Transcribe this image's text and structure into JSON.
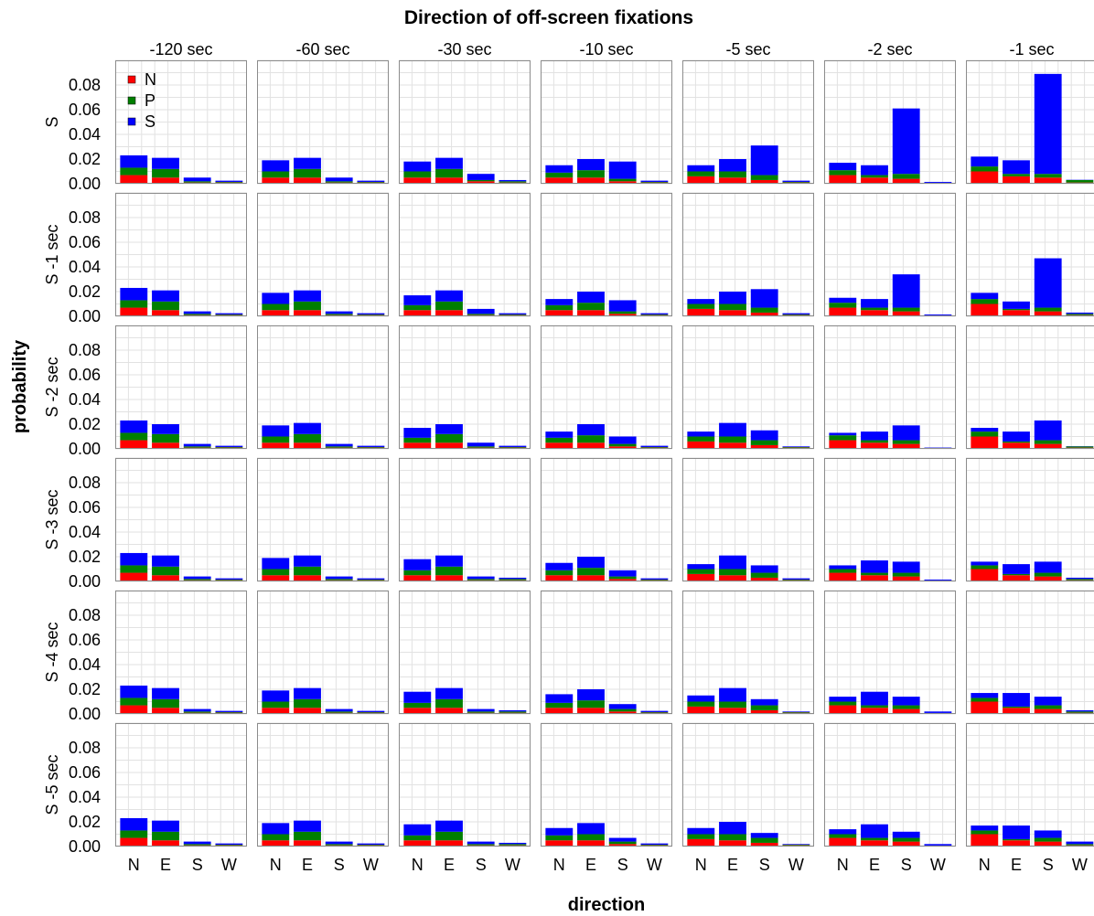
{
  "chart_data": {
    "type": "bar",
    "stacked": true,
    "title": "Direction of off-screen fixations",
    "xlabel": "direction",
    "ylabel": "probability",
    "ylim": [
      0,
      0.1
    ],
    "yticks": [
      0.0,
      0.02,
      0.04,
      0.06,
      0.08
    ],
    "ytick_labels": [
      "0.00",
      "0.02",
      "0.04",
      "0.06",
      "0.08"
    ],
    "grid": true,
    "legend": {
      "placement": "top-left",
      "panel": "first"
    },
    "categories": [
      "N",
      "E",
      "S",
      "W"
    ],
    "column_facets": [
      "-120 sec",
      "-60 sec",
      "-30 sec",
      "-10 sec",
      "-5 sec",
      "-2 sec",
      "-1 sec"
    ],
    "row_facets": [
      "S",
      "S -1 sec",
      "S -2 sec",
      "S -3 sec",
      "S -4 sec",
      "S -5 sec"
    ],
    "series_names": [
      "N",
      "P",
      "S"
    ],
    "series_colors": [
      "#ff0000",
      "#007f00",
      "#0000ff"
    ],
    "panels": [
      [
        {
          "N": [
            0.007,
            0.005,
            0.001,
            0.001
          ],
          "P": [
            0.006,
            0.007,
            0.001,
            0.0005
          ],
          "S": [
            0.01,
            0.009,
            0.003,
            0.001
          ]
        },
        {
          "N": [
            0.005,
            0.005,
            0.001,
            0.001
          ],
          "P": [
            0.005,
            0.007,
            0.001,
            0.0005
          ],
          "S": [
            0.009,
            0.009,
            0.003,
            0.001
          ]
        },
        {
          "N": [
            0.005,
            0.005,
            0.002,
            0.001
          ],
          "P": [
            0.005,
            0.007,
            0.001,
            0.001
          ],
          "S": [
            0.008,
            0.009,
            0.005,
            0.001
          ]
        },
        {
          "N": [
            0.005,
            0.005,
            0.002,
            0.001
          ],
          "P": [
            0.004,
            0.006,
            0.002,
            0.0005
          ],
          "S": [
            0.006,
            0.009,
            0.014,
            0.001
          ]
        },
        {
          "N": [
            0.006,
            0.005,
            0.003,
            0.001
          ],
          "P": [
            0.004,
            0.005,
            0.004,
            0.0005
          ],
          "S": [
            0.005,
            0.01,
            0.024,
            0.001
          ]
        },
        {
          "N": [
            0.007,
            0.005,
            0.004,
            0.0005
          ],
          "P": [
            0.004,
            0.002,
            0.004,
            0.0003
          ],
          "S": [
            0.006,
            0.008,
            0.053,
            0.0007
          ]
        },
        {
          "N": [
            0.01,
            0.006,
            0.005,
            0.001
          ],
          "P": [
            0.004,
            0.002,
            0.003,
            0.002
          ],
          "S": [
            0.008,
            0.011,
            0.081,
            0.0002
          ]
        }
      ],
      [
        {
          "N": [
            0.007,
            0.005,
            0.001,
            0.001
          ],
          "P": [
            0.006,
            0.007,
            0.001,
            0.0005
          ],
          "S": [
            0.01,
            0.009,
            0.002,
            0.001
          ]
        },
        {
          "N": [
            0.005,
            0.005,
            0.001,
            0.001
          ],
          "P": [
            0.005,
            0.007,
            0.001,
            0.0005
          ],
          "S": [
            0.009,
            0.009,
            0.002,
            0.001
          ]
        },
        {
          "N": [
            0.005,
            0.005,
            0.001,
            0.001
          ],
          "P": [
            0.004,
            0.007,
            0.001,
            0.0005
          ],
          "S": [
            0.008,
            0.009,
            0.004,
            0.001
          ]
        },
        {
          "N": [
            0.005,
            0.005,
            0.002,
            0.001
          ],
          "P": [
            0.004,
            0.006,
            0.002,
            0.0005
          ],
          "S": [
            0.005,
            0.009,
            0.009,
            0.001
          ]
        },
        {
          "N": [
            0.006,
            0.005,
            0.003,
            0.001
          ],
          "P": [
            0.004,
            0.005,
            0.004,
            0.0005
          ],
          "S": [
            0.004,
            0.01,
            0.015,
            0.001
          ]
        },
        {
          "N": [
            0.007,
            0.005,
            0.004,
            0.0005
          ],
          "P": [
            0.004,
            0.002,
            0.003,
            0.0003
          ],
          "S": [
            0.004,
            0.007,
            0.027,
            0.0007
          ]
        },
        {
          "N": [
            0.01,
            0.005,
            0.004,
            0.001
          ],
          "P": [
            0.004,
            0.001,
            0.003,
            0.001
          ],
          "S": [
            0.005,
            0.006,
            0.04,
            0.001
          ]
        }
      ],
      [
        {
          "N": [
            0.007,
            0.005,
            0.001,
            0.001
          ],
          "P": [
            0.006,
            0.007,
            0.001,
            0.0005
          ],
          "S": [
            0.01,
            0.008,
            0.002,
            0.001
          ]
        },
        {
          "N": [
            0.005,
            0.005,
            0.001,
            0.001
          ],
          "P": [
            0.005,
            0.007,
            0.001,
            0.0005
          ],
          "S": [
            0.009,
            0.009,
            0.002,
            0.001
          ]
        },
        {
          "N": [
            0.005,
            0.005,
            0.001,
            0.001
          ],
          "P": [
            0.004,
            0.007,
            0.001,
            0.0005
          ],
          "S": [
            0.008,
            0.008,
            0.003,
            0.001
          ]
        },
        {
          "N": [
            0.005,
            0.005,
            0.002,
            0.001
          ],
          "P": [
            0.004,
            0.006,
            0.002,
            0.0005
          ],
          "S": [
            0.005,
            0.009,
            0.006,
            0.001
          ]
        },
        {
          "N": [
            0.006,
            0.005,
            0.003,
            0.001
          ],
          "P": [
            0.004,
            0.005,
            0.004,
            0.0005
          ],
          "S": [
            0.004,
            0.011,
            0.008,
            0.0005
          ]
        },
        {
          "N": [
            0.007,
            0.005,
            0.004,
            0.0005
          ],
          "P": [
            0.004,
            0.002,
            0.003,
            0.0003
          ],
          "S": [
            0.002,
            0.007,
            0.012,
            0.0003
          ]
        },
        {
          "N": [
            0.01,
            0.005,
            0.004,
            0.001
          ],
          "P": [
            0.004,
            0.001,
            0.003,
            0.001
          ],
          "S": [
            0.003,
            0.008,
            0.016,
            0.0002
          ]
        }
      ],
      [
        {
          "N": [
            0.007,
            0.005,
            0.001,
            0.001
          ],
          "P": [
            0.006,
            0.007,
            0.001,
            0.0005
          ],
          "S": [
            0.01,
            0.009,
            0.002,
            0.001
          ]
        },
        {
          "N": [
            0.005,
            0.005,
            0.001,
            0.001
          ],
          "P": [
            0.005,
            0.007,
            0.001,
            0.0005
          ],
          "S": [
            0.009,
            0.009,
            0.002,
            0.001
          ]
        },
        {
          "N": [
            0.005,
            0.005,
            0.001,
            0.001
          ],
          "P": [
            0.004,
            0.007,
            0.001,
            0.001
          ],
          "S": [
            0.009,
            0.009,
            0.002,
            0.001
          ]
        },
        {
          "N": [
            0.005,
            0.005,
            0.002,
            0.001
          ],
          "P": [
            0.004,
            0.006,
            0.002,
            0.0005
          ],
          "S": [
            0.006,
            0.009,
            0.005,
            0.001
          ]
        },
        {
          "N": [
            0.006,
            0.005,
            0.003,
            0.001
          ],
          "P": [
            0.004,
            0.005,
            0.004,
            0.0005
          ],
          "S": [
            0.004,
            0.011,
            0.006,
            0.001
          ]
        },
        {
          "N": [
            0.007,
            0.005,
            0.004,
            0.0005
          ],
          "P": [
            0.003,
            0.002,
            0.003,
            0.0003
          ],
          "S": [
            0.003,
            0.01,
            0.009,
            0.0007
          ]
        },
        {
          "N": [
            0.01,
            0.005,
            0.004,
            0.001
          ],
          "P": [
            0.003,
            0.001,
            0.003,
            0.001
          ],
          "S": [
            0.003,
            0.008,
            0.009,
            0.001
          ]
        }
      ],
      [
        {
          "N": [
            0.007,
            0.005,
            0.001,
            0.001
          ],
          "P": [
            0.006,
            0.007,
            0.001,
            0.0005
          ],
          "S": [
            0.01,
            0.009,
            0.002,
            0.001
          ]
        },
        {
          "N": [
            0.005,
            0.005,
            0.001,
            0.001
          ],
          "P": [
            0.005,
            0.007,
            0.001,
            0.0005
          ],
          "S": [
            0.009,
            0.009,
            0.002,
            0.001
          ]
        },
        {
          "N": [
            0.005,
            0.005,
            0.001,
            0.001
          ],
          "P": [
            0.004,
            0.007,
            0.001,
            0.001
          ],
          "S": [
            0.009,
            0.009,
            0.002,
            0.001
          ]
        },
        {
          "N": [
            0.005,
            0.005,
            0.002,
            0.001
          ],
          "P": [
            0.004,
            0.006,
            0.002,
            0.0005
          ],
          "S": [
            0.007,
            0.009,
            0.004,
            0.001
          ]
        },
        {
          "N": [
            0.006,
            0.005,
            0.003,
            0.001
          ],
          "P": [
            0.004,
            0.005,
            0.004,
            0.0005
          ],
          "S": [
            0.005,
            0.011,
            0.005,
            0.0005
          ]
        },
        {
          "N": [
            0.007,
            0.005,
            0.004,
            0.0005
          ],
          "P": [
            0.003,
            0.002,
            0.003,
            0.0003
          ],
          "S": [
            0.004,
            0.011,
            0.007,
            0.0012
          ]
        },
        {
          "N": [
            0.01,
            0.005,
            0.004,
            0.001
          ],
          "P": [
            0.003,
            0.001,
            0.003,
            0.001
          ],
          "S": [
            0.004,
            0.011,
            0.007,
            0.001
          ]
        }
      ],
      [
        {
          "N": [
            0.007,
            0.005,
            0.001,
            0.001
          ],
          "P": [
            0.006,
            0.007,
            0.001,
            0.0005
          ],
          "S": [
            0.01,
            0.009,
            0.002,
            0.001
          ]
        },
        {
          "N": [
            0.005,
            0.005,
            0.001,
            0.001
          ],
          "P": [
            0.005,
            0.007,
            0.001,
            0.0005
          ],
          "S": [
            0.009,
            0.009,
            0.002,
            0.001
          ]
        },
        {
          "N": [
            0.005,
            0.005,
            0.001,
            0.001
          ],
          "P": [
            0.004,
            0.007,
            0.001,
            0.001
          ],
          "S": [
            0.009,
            0.009,
            0.002,
            0.001
          ]
        },
        {
          "N": [
            0.005,
            0.005,
            0.002,
            0.001
          ],
          "P": [
            0.004,
            0.005,
            0.002,
            0.0005
          ],
          "S": [
            0.006,
            0.009,
            0.003,
            0.001
          ]
        },
        {
          "N": [
            0.006,
            0.005,
            0.003,
            0.001
          ],
          "P": [
            0.004,
            0.005,
            0.004,
            0.0005
          ],
          "S": [
            0.005,
            0.01,
            0.004,
            0.0005
          ]
        },
        {
          "N": [
            0.007,
            0.005,
            0.004,
            0.0005
          ],
          "P": [
            0.003,
            0.002,
            0.003,
            0.0003
          ],
          "S": [
            0.004,
            0.011,
            0.005,
            0.0012
          ]
        },
        {
          "N": [
            0.01,
            0.005,
            0.004,
            0.001
          ],
          "P": [
            0.003,
            0.001,
            0.003,
            0.001
          ],
          "S": [
            0.004,
            0.011,
            0.006,
            0.002
          ]
        }
      ]
    ]
  }
}
